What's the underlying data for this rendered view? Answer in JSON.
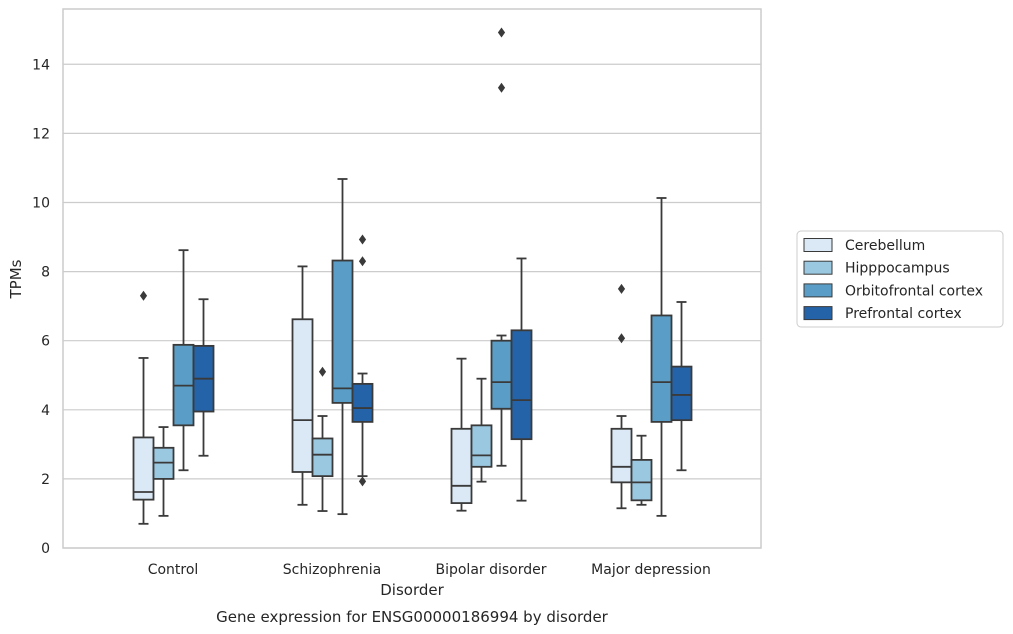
{
  "caption": "Gene expression for ENSG00000186994 by disorder",
  "chart_data": {
    "type": "boxplot",
    "title": "",
    "xlabel": "Disorder",
    "ylabel": "TPMs",
    "ylim": [
      0,
      15.6
    ],
    "yticks": [
      0,
      2,
      4,
      6,
      8,
      10,
      12,
      14
    ],
    "grid": "horizontal",
    "legend_position": "right",
    "categories": [
      "Control",
      "Schizophrenia",
      "Bipolar disorder",
      "Major depression"
    ],
    "series": [
      {
        "name": "Cerebellum",
        "color": "#dbe9f6",
        "boxes": [
          {
            "whisker_low": 0.7,
            "q1": 1.4,
            "median": 1.62,
            "q3": 3.2,
            "whisker_high": 5.5,
            "outliers": [
              7.3
            ]
          },
          {
            "whisker_low": 1.25,
            "q1": 2.2,
            "median": 3.7,
            "q3": 6.62,
            "whisker_high": 8.15,
            "outliers": []
          },
          {
            "whisker_low": 1.08,
            "q1": 1.3,
            "median": 1.8,
            "q3": 3.45,
            "whisker_high": 5.48,
            "outliers": []
          },
          {
            "whisker_low": 1.15,
            "q1": 1.9,
            "median": 2.35,
            "q3": 3.45,
            "whisker_high": 3.82,
            "outliers": [
              6.07,
              7.5
            ]
          }
        ]
      },
      {
        "name": "Hipppocampus",
        "color": "#9ac8e0",
        "boxes": [
          {
            "whisker_low": 0.93,
            "q1": 2.0,
            "median": 2.47,
            "q3": 2.9,
            "whisker_high": 3.5,
            "outliers": []
          },
          {
            "whisker_low": 1.07,
            "q1": 2.08,
            "median": 2.7,
            "q3": 3.17,
            "whisker_high": 3.82,
            "outliers": [
              5.1
            ]
          },
          {
            "whisker_low": 1.92,
            "q1": 2.35,
            "median": 2.68,
            "q3": 3.55,
            "whisker_high": 4.9,
            "outliers": []
          },
          {
            "whisker_low": 1.25,
            "q1": 1.38,
            "median": 1.9,
            "q3": 2.55,
            "whisker_high": 3.25,
            "outliers": []
          }
        ]
      },
      {
        "name": "Orbitofrontal cortex",
        "color": "#5a9ec8",
        "boxes": [
          {
            "whisker_low": 2.25,
            "q1": 3.55,
            "median": 4.7,
            "q3": 5.88,
            "whisker_high": 8.62,
            "outliers": []
          },
          {
            "whisker_low": 0.98,
            "q1": 4.2,
            "median": 4.62,
            "q3": 8.32,
            "whisker_high": 10.68,
            "outliers": []
          },
          {
            "whisker_low": 2.38,
            "q1": 4.03,
            "median": 4.8,
            "q3": 6.0,
            "whisker_high": 6.15,
            "outliers": [
              13.32,
              14.92
            ]
          },
          {
            "whisker_low": 0.93,
            "q1": 3.65,
            "median": 4.8,
            "q3": 6.73,
            "whisker_high": 10.13,
            "outliers": []
          }
        ]
      },
      {
        "name": "Prefrontal cortex",
        "color": "#2563a8",
        "boxes": [
          {
            "whisker_low": 2.67,
            "q1": 3.95,
            "median": 4.9,
            "q3": 5.85,
            "whisker_high": 7.2,
            "outliers": []
          },
          {
            "whisker_low": 2.08,
            "q1": 3.65,
            "median": 4.05,
            "q3": 4.75,
            "whisker_high": 5.05,
            "outliers": [
              1.93,
              8.3,
              8.93
            ]
          },
          {
            "whisker_low": 1.37,
            "q1": 3.15,
            "median": 4.28,
            "q3": 6.3,
            "whisker_high": 8.38,
            "outliers": []
          },
          {
            "whisker_low": 2.25,
            "q1": 3.7,
            "median": 4.43,
            "q3": 5.25,
            "whisker_high": 7.12,
            "outliers": []
          }
        ]
      }
    ]
  }
}
